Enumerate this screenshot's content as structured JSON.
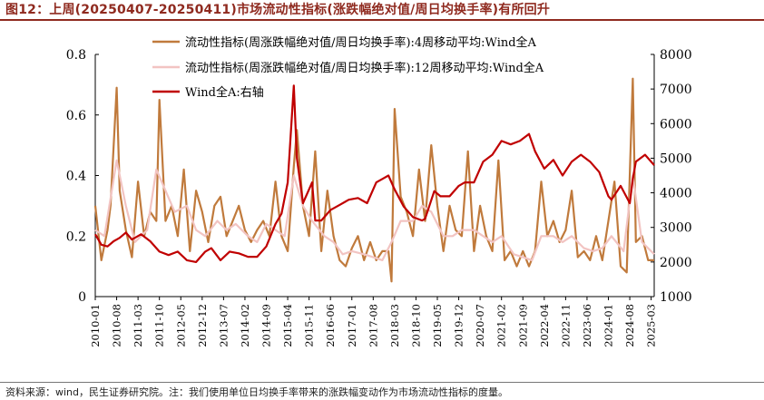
{
  "title": "图12：上周(20250407-20250411)市场流动性指标(涨跌幅绝对值/周日均换手率)有所回升",
  "footer": "资料来源：wind，民生证券研究院。注：我们使用单位日均换手率带来的涨跌幅变动作为市场流动性指标的度量。",
  "chart_data": {
    "type": "line",
    "title": "",
    "xlabel": "",
    "ylabel": "",
    "y2label": "",
    "ylim": [
      0,
      0.8
    ],
    "y2lim": [
      1000,
      8000
    ],
    "yticks": [
      "0",
      "0.2",
      "0.4",
      "0.6",
      "0.8"
    ],
    "y2ticks": [
      "1000",
      "2000",
      "3000",
      "4000",
      "5000",
      "6000",
      "7000",
      "8000"
    ],
    "xlim": [
      "2010-01",
      "2025-04"
    ],
    "xticks": [
      "2010-01",
      "2010-08",
      "2011-03",
      "2011-10",
      "2012-05",
      "2012-12",
      "2013-07",
      "2014-02",
      "2014-09",
      "2015-04",
      "2015-11",
      "2016-06",
      "2017-01",
      "2017-08",
      "2018-03",
      "2018-10",
      "2019-05",
      "2019-12",
      "2020-07",
      "2021-02",
      "2021-09",
      "2022-04",
      "2022-11",
      "2023-06",
      "2024-01",
      "2024-08",
      "2025-03"
    ],
    "grid": false,
    "legend_position": "top-center",
    "series": [
      {
        "name": "流动性指标(周涨跌幅绝对值/周日均换手率):4周移动平均:Wind全A",
        "axis": "left",
        "color": "#c07a3c",
        "x": [
          "2010-01",
          "2010-03",
          "2010-05",
          "2010-06",
          "2010-08",
          "2010-09",
          "2010-11",
          "2011-01",
          "2011-03",
          "2011-05",
          "2011-07",
          "2011-09",
          "2011-10",
          "2011-12",
          "2012-02",
          "2012-04",
          "2012-06",
          "2012-08",
          "2012-10",
          "2012-12",
          "2013-02",
          "2013-04",
          "2013-06",
          "2013-08",
          "2013-10",
          "2013-12",
          "2014-02",
          "2014-04",
          "2014-06",
          "2014-08",
          "2014-10",
          "2014-12",
          "2015-02",
          "2015-04",
          "2015-06",
          "2015-07",
          "2015-09",
          "2015-11",
          "2016-01",
          "2016-03",
          "2016-05",
          "2016-07",
          "2016-09",
          "2016-11",
          "2017-01",
          "2017-03",
          "2017-05",
          "2017-07",
          "2017-09",
          "2017-11",
          "2018-01",
          "2018-02",
          "2018-03",
          "2018-05",
          "2018-07",
          "2018-09",
          "2018-11",
          "2019-01",
          "2019-03",
          "2019-05",
          "2019-07",
          "2019-09",
          "2019-11",
          "2020-01",
          "2020-03",
          "2020-05",
          "2020-07",
          "2020-09",
          "2020-11",
          "2021-01",
          "2021-03",
          "2021-05",
          "2021-07",
          "2021-09",
          "2021-11",
          "2022-01",
          "2022-03",
          "2022-05",
          "2022-07",
          "2022-09",
          "2022-11",
          "2023-01",
          "2023-03",
          "2023-05",
          "2023-07",
          "2023-09",
          "2023-11",
          "2024-01",
          "2024-03",
          "2024-05",
          "2024-07",
          "2024-09",
          "2024-10",
          "2024-12",
          "2025-02",
          "2025-04"
        ],
        "values": [
          0.3,
          0.12,
          0.22,
          0.3,
          0.69,
          0.35,
          0.22,
          0.13,
          0.38,
          0.2,
          0.28,
          0.25,
          0.65,
          0.25,
          0.3,
          0.2,
          0.42,
          0.15,
          0.35,
          0.28,
          0.18,
          0.3,
          0.33,
          0.2,
          0.25,
          0.3,
          0.22,
          0.18,
          0.22,
          0.25,
          0.2,
          0.38,
          0.2,
          0.15,
          0.43,
          0.55,
          0.3,
          0.2,
          0.48,
          0.15,
          0.35,
          0.2,
          0.12,
          0.1,
          0.16,
          0.2,
          0.12,
          0.18,
          0.12,
          0.15,
          0.15,
          0.05,
          0.62,
          0.33,
          0.28,
          0.2,
          0.42,
          0.25,
          0.5,
          0.3,
          0.15,
          0.3,
          0.22,
          0.2,
          0.48,
          0.15,
          0.3,
          0.2,
          0.15,
          0.45,
          0.12,
          0.15,
          0.1,
          0.15,
          0.1,
          0.15,
          0.38,
          0.2,
          0.25,
          0.18,
          0.22,
          0.35,
          0.13,
          0.15,
          0.12,
          0.2,
          0.12,
          0.25,
          0.38,
          0.1,
          0.08,
          0.72,
          0.18,
          0.2,
          0.12,
          0.12
        ]
      },
      {
        "name": "流动性指标(周涨跌幅绝对值/周日均换手率):12周移动平均:Wind全A",
        "axis": "left",
        "color": "#f2c4c2",
        "x": [
          "2010-01",
          "2010-04",
          "2010-08",
          "2010-11",
          "2011-02",
          "2011-06",
          "2011-09",
          "2011-12",
          "2012-03",
          "2012-07",
          "2012-10",
          "2013-01",
          "2013-05",
          "2013-08",
          "2013-11",
          "2014-03",
          "2014-06",
          "2014-09",
          "2014-12",
          "2015-03",
          "2015-06",
          "2015-09",
          "2015-12",
          "2016-04",
          "2016-07",
          "2016-10",
          "2017-01",
          "2017-05",
          "2017-08",
          "2017-11",
          "2018-02",
          "2018-05",
          "2018-09",
          "2018-12",
          "2019-03",
          "2019-07",
          "2019-10",
          "2020-01",
          "2020-05",
          "2020-08",
          "2020-11",
          "2021-02",
          "2021-06",
          "2021-09",
          "2021-12",
          "2022-03",
          "2022-07",
          "2022-10",
          "2023-01",
          "2023-05",
          "2023-08",
          "2023-11",
          "2024-02",
          "2024-06",
          "2024-09",
          "2024-12",
          "2025-04"
        ],
        "values": [
          0.22,
          0.2,
          0.45,
          0.3,
          0.18,
          0.22,
          0.42,
          0.35,
          0.28,
          0.3,
          0.22,
          0.2,
          0.25,
          0.22,
          0.24,
          0.2,
          0.18,
          0.24,
          0.22,
          0.2,
          0.4,
          0.3,
          0.25,
          0.2,
          0.18,
          0.14,
          0.15,
          0.14,
          0.13,
          0.12,
          0.18,
          0.25,
          0.25,
          0.3,
          0.28,
          0.2,
          0.2,
          0.22,
          0.22,
          0.2,
          0.18,
          0.2,
          0.14,
          0.13,
          0.12,
          0.2,
          0.2,
          0.18,
          0.2,
          0.16,
          0.15,
          0.16,
          0.2,
          0.15,
          0.4,
          0.18,
          0.14
        ]
      },
      {
        "name": "Wind全A:右轴",
        "axis": "right",
        "color": "#c00000",
        "x": [
          "2010-01",
          "2010-03",
          "2010-05",
          "2010-07",
          "2010-09",
          "2010-11",
          "2011-01",
          "2011-04",
          "2011-07",
          "2011-10",
          "2012-01",
          "2012-04",
          "2012-07",
          "2012-10",
          "2013-01",
          "2013-03",
          "2013-06",
          "2013-09",
          "2013-12",
          "2014-03",
          "2014-06",
          "2014-09",
          "2014-12",
          "2015-02",
          "2015-04",
          "2015-06",
          "2015-07",
          "2015-09",
          "2015-12",
          "2016-01",
          "2016-03",
          "2016-06",
          "2016-09",
          "2016-12",
          "2017-03",
          "2017-06",
          "2017-09",
          "2017-11",
          "2018-01",
          "2018-03",
          "2018-06",
          "2018-09",
          "2018-12",
          "2019-01",
          "2019-04",
          "2019-06",
          "2019-09",
          "2019-12",
          "2020-02",
          "2020-05",
          "2020-08",
          "2020-11",
          "2021-02",
          "2021-05",
          "2021-08",
          "2021-11",
          "2022-01",
          "2022-04",
          "2022-07",
          "2022-10",
          "2023-01",
          "2023-04",
          "2023-07",
          "2023-10",
          "2024-01",
          "2024-02",
          "2024-05",
          "2024-08",
          "2024-09",
          "2024-10",
          "2025-01",
          "2025-04"
        ],
        "values": [
          2800,
          2500,
          2450,
          2600,
          2700,
          2850,
          2650,
          2800,
          2600,
          2300,
          2200,
          2300,
          2050,
          2000,
          2300,
          2400,
          2050,
          2300,
          2250,
          2150,
          2150,
          2450,
          3100,
          3400,
          4300,
          7100,
          5000,
          3700,
          4300,
          3200,
          3200,
          3500,
          3650,
          3800,
          3850,
          3700,
          4300,
          4400,
          4500,
          4100,
          3600,
          3300,
          3200,
          3250,
          4050,
          3900,
          3900,
          4200,
          4300,
          4300,
          4900,
          5100,
          5500,
          5400,
          5500,
          5700,
          5200,
          4700,
          4950,
          4500,
          4900,
          5100,
          4900,
          4600,
          3900,
          3800,
          4200,
          3700,
          4400,
          4900,
          5100,
          4800
        ]
      }
    ]
  }
}
